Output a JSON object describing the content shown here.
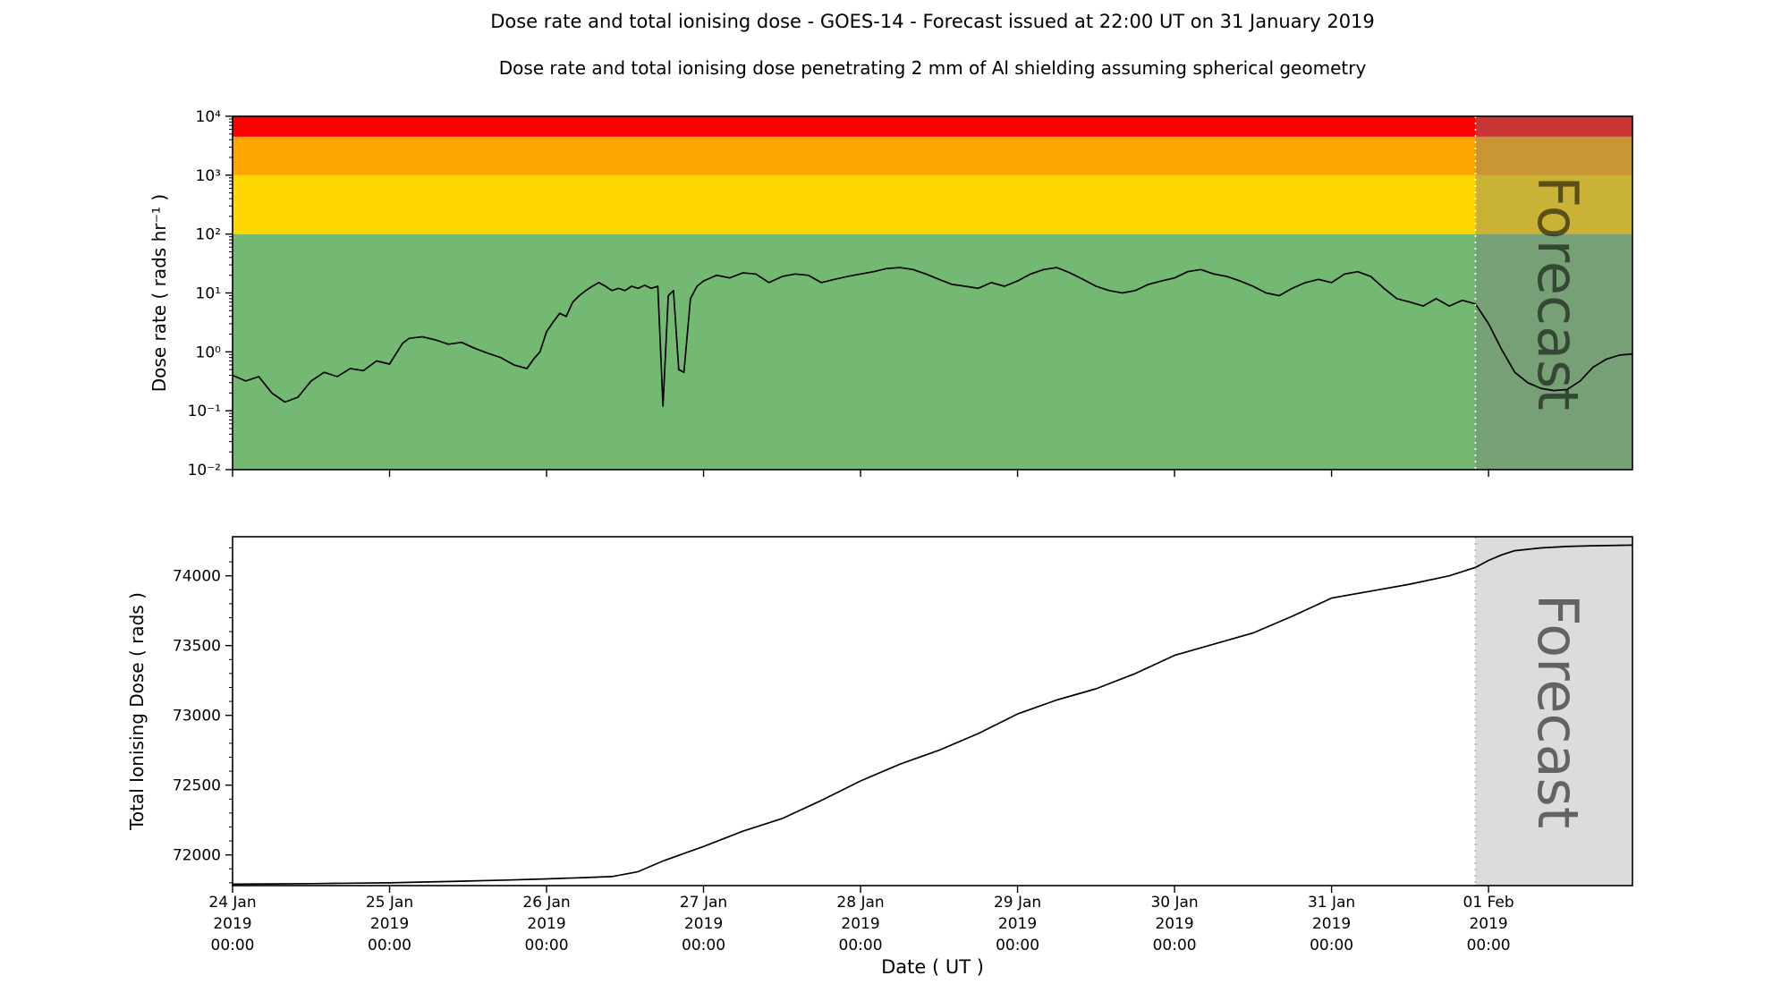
{
  "title": "Dose rate and total ionising dose - GOES-14 - Forecast issued at 22:00 UT on 31 January 2019",
  "subtitle": "Dose rate and total ionising dose penetrating 2 mm of Al shielding assuming spherical geometry",
  "forecast": {
    "start_hour": 190,
    "label": "Forecast"
  },
  "x_axis": {
    "label": "Date ( UT )",
    "range_hours": [
      0,
      214
    ],
    "ticks": [
      {
        "hour": 0,
        "date": "24 Jan",
        "year": "2019",
        "time": "00:00"
      },
      {
        "hour": 24,
        "date": "25 Jan",
        "year": "2019",
        "time": "00:00"
      },
      {
        "hour": 48,
        "date": "26 Jan",
        "year": "2019",
        "time": "00:00"
      },
      {
        "hour": 72,
        "date": "27 Jan",
        "year": "2019",
        "time": "00:00"
      },
      {
        "hour": 96,
        "date": "28 Jan",
        "year": "2019",
        "time": "00:00"
      },
      {
        "hour": 120,
        "date": "29 Jan",
        "year": "2019",
        "time": "00:00"
      },
      {
        "hour": 144,
        "date": "30 Jan",
        "year": "2019",
        "time": "00:00"
      },
      {
        "hour": 168,
        "date": "31 Jan",
        "year": "2019",
        "time": "00:00"
      },
      {
        "hour": 192,
        "date": "01 Feb",
        "year": "2019",
        "time": "00:00"
      }
    ]
  },
  "chart_data": [
    {
      "name": "dose-rate",
      "type": "line",
      "ylabel": "Dose rate ( rads hr⁻¹ )",
      "yscale": "log",
      "ylim": [
        0.01,
        10000
      ],
      "yticks": [
        {
          "v": 0.01,
          "label": "10⁻²"
        },
        {
          "v": 0.1,
          "label": "10⁻¹"
        },
        {
          "v": 1,
          "label": "10⁰"
        },
        {
          "v": 10,
          "label": "10¹"
        },
        {
          "v": 100,
          "label": "10²"
        },
        {
          "v": 1000,
          "label": "10³"
        },
        {
          "v": 10000,
          "label": "10⁴"
        }
      ],
      "bands": [
        {
          "from": 0.01,
          "to": 100,
          "color": "#73b973",
          "meaning": "green"
        },
        {
          "from": 100,
          "to": 1000,
          "color": "#ffd700",
          "meaning": "yellow"
        },
        {
          "from": 1000,
          "to": 4500,
          "color": "#ffa500",
          "meaning": "orange"
        },
        {
          "from": 4500,
          "to": 10000,
          "color": "#ff0000",
          "meaning": "red"
        }
      ],
      "forecast_overlay": {
        "fill": "#7f7f7f",
        "opacity": 0.42
      },
      "boundary_color": "#ffffff",
      "forecast_text_color": "#5a5a5a",
      "line_color": "#000000",
      "line_width": 1.7,
      "points": [
        [
          0,
          0.4
        ],
        [
          2,
          0.32
        ],
        [
          4,
          0.38
        ],
        [
          6,
          0.2
        ],
        [
          8,
          0.14
        ],
        [
          10,
          0.17
        ],
        [
          12,
          0.32
        ],
        [
          14,
          0.45
        ],
        [
          16,
          0.38
        ],
        [
          18,
          0.52
        ],
        [
          20,
          0.48
        ],
        [
          22,
          0.7
        ],
        [
          24,
          0.62
        ],
        [
          26,
          1.4
        ],
        [
          27,
          1.7
        ],
        [
          29,
          1.8
        ],
        [
          31,
          1.6
        ],
        [
          33,
          1.35
        ],
        [
          35,
          1.45
        ],
        [
          37,
          1.15
        ],
        [
          39,
          0.95
        ],
        [
          41,
          0.8
        ],
        [
          43,
          0.6
        ],
        [
          45,
          0.52
        ],
        [
          46,
          0.75
        ],
        [
          47,
          1.0
        ],
        [
          48,
          2.2
        ],
        [
          49,
          3.2
        ],
        [
          50,
          4.5
        ],
        [
          51,
          4.0
        ],
        [
          52,
          7.0
        ],
        [
          53,
          9.0
        ],
        [
          54,
          11
        ],
        [
          55,
          13
        ],
        [
          56,
          15
        ],
        [
          57,
          13
        ],
        [
          58,
          11
        ],
        [
          59,
          12
        ],
        [
          60,
          11
        ],
        [
          61,
          13
        ],
        [
          62,
          12
        ],
        [
          63,
          13.5
        ],
        [
          64,
          12
        ],
        [
          65,
          13
        ],
        [
          65.8,
          0.12
        ],
        [
          66.6,
          9
        ],
        [
          67.4,
          11
        ],
        [
          68.2,
          0.5
        ],
        [
          69,
          0.45
        ],
        [
          70,
          8
        ],
        [
          71,
          13
        ],
        [
          72,
          16
        ],
        [
          74,
          20
        ],
        [
          76,
          18
        ],
        [
          78,
          22
        ],
        [
          80,
          21
        ],
        [
          82,
          15
        ],
        [
          84,
          19
        ],
        [
          86,
          21
        ],
        [
          88,
          20
        ],
        [
          90,
          15
        ],
        [
          92,
          17
        ],
        [
          94,
          19
        ],
        [
          96,
          21
        ],
        [
          98,
          23
        ],
        [
          100,
          26
        ],
        [
          102,
          27
        ],
        [
          104,
          25
        ],
        [
          106,
          21
        ],
        [
          108,
          17
        ],
        [
          110,
          14
        ],
        [
          112,
          13
        ],
        [
          114,
          12
        ],
        [
          116,
          15
        ],
        [
          118,
          13
        ],
        [
          120,
          16
        ],
        [
          122,
          21
        ],
        [
          124,
          25
        ],
        [
          126,
          27
        ],
        [
          128,
          22
        ],
        [
          130,
          17
        ],
        [
          132,
          13
        ],
        [
          134,
          11
        ],
        [
          136,
          10
        ],
        [
          138,
          11
        ],
        [
          140,
          14
        ],
        [
          142,
          16
        ],
        [
          144,
          18
        ],
        [
          146,
          23
        ],
        [
          148,
          25
        ],
        [
          150,
          21
        ],
        [
          152,
          19
        ],
        [
          154,
          16
        ],
        [
          156,
          13
        ],
        [
          158,
          10
        ],
        [
          160,
          9
        ],
        [
          162,
          12
        ],
        [
          164,
          15
        ],
        [
          166,
          17
        ],
        [
          168,
          15
        ],
        [
          170,
          21
        ],
        [
          172,
          23
        ],
        [
          174,
          19
        ],
        [
          176,
          12
        ],
        [
          178,
          8
        ],
        [
          180,
          7
        ],
        [
          182,
          6
        ],
        [
          184,
          8
        ],
        [
          186,
          6
        ],
        [
          188,
          7.5
        ],
        [
          190,
          6.5
        ],
        [
          192,
          3
        ],
        [
          194,
          1.1
        ],
        [
          196,
          0.45
        ],
        [
          198,
          0.3
        ],
        [
          200,
          0.24
        ],
        [
          202,
          0.22
        ],
        [
          204,
          0.23
        ],
        [
          206,
          0.32
        ],
        [
          208,
          0.55
        ],
        [
          210,
          0.75
        ],
        [
          212,
          0.88
        ],
        [
          214,
          0.92
        ]
      ]
    },
    {
      "name": "total-ionising-dose",
      "type": "line",
      "ylabel": "Total Ionising Dose ( rads )",
      "yscale": "linear",
      "ylim": [
        71780,
        74280
      ],
      "yticks": [
        {
          "v": 72000,
          "label": "72000"
        },
        {
          "v": 72500,
          "label": "72500"
        },
        {
          "v": 73000,
          "label": "73000"
        },
        {
          "v": 73500,
          "label": "73500"
        },
        {
          "v": 74000,
          "label": "74000"
        }
      ],
      "minor_step": 100,
      "background": "#ffffff",
      "forecast_overlay": {
        "fill": "#dcdcdc",
        "opacity": 1
      },
      "boundary_color": "#aaaaaa",
      "forecast_text_color": "#9a9a9a",
      "line_color": "#000000",
      "line_width": 1.7,
      "points": [
        [
          0,
          71790
        ],
        [
          6,
          71792
        ],
        [
          12,
          71794
        ],
        [
          18,
          71797
        ],
        [
          24,
          71800
        ],
        [
          30,
          71806
        ],
        [
          36,
          71813
        ],
        [
          42,
          71820
        ],
        [
          48,
          71828
        ],
        [
          54,
          71838
        ],
        [
          58,
          71845
        ],
        [
          62,
          71880
        ],
        [
          66,
          71960
        ],
        [
          72,
          72060
        ],
        [
          78,
          72170
        ],
        [
          84,
          72260
        ],
        [
          90,
          72390
        ],
        [
          96,
          72530
        ],
        [
          102,
          72650
        ],
        [
          108,
          72750
        ],
        [
          114,
          72870
        ],
        [
          120,
          73010
        ],
        [
          126,
          73110
        ],
        [
          132,
          73190
        ],
        [
          138,
          73300
        ],
        [
          144,
          73430
        ],
        [
          150,
          73510
        ],
        [
          156,
          73590
        ],
        [
          162,
          73710
        ],
        [
          168,
          73840
        ],
        [
          174,
          73890
        ],
        [
          180,
          73940
        ],
        [
          186,
          74000
        ],
        [
          190,
          74060
        ],
        [
          192,
          74110
        ],
        [
          194,
          74150
        ],
        [
          196,
          74180
        ],
        [
          200,
          74200
        ],
        [
          204,
          74210
        ],
        [
          208,
          74215
        ],
        [
          214,
          74220
        ]
      ]
    }
  ]
}
